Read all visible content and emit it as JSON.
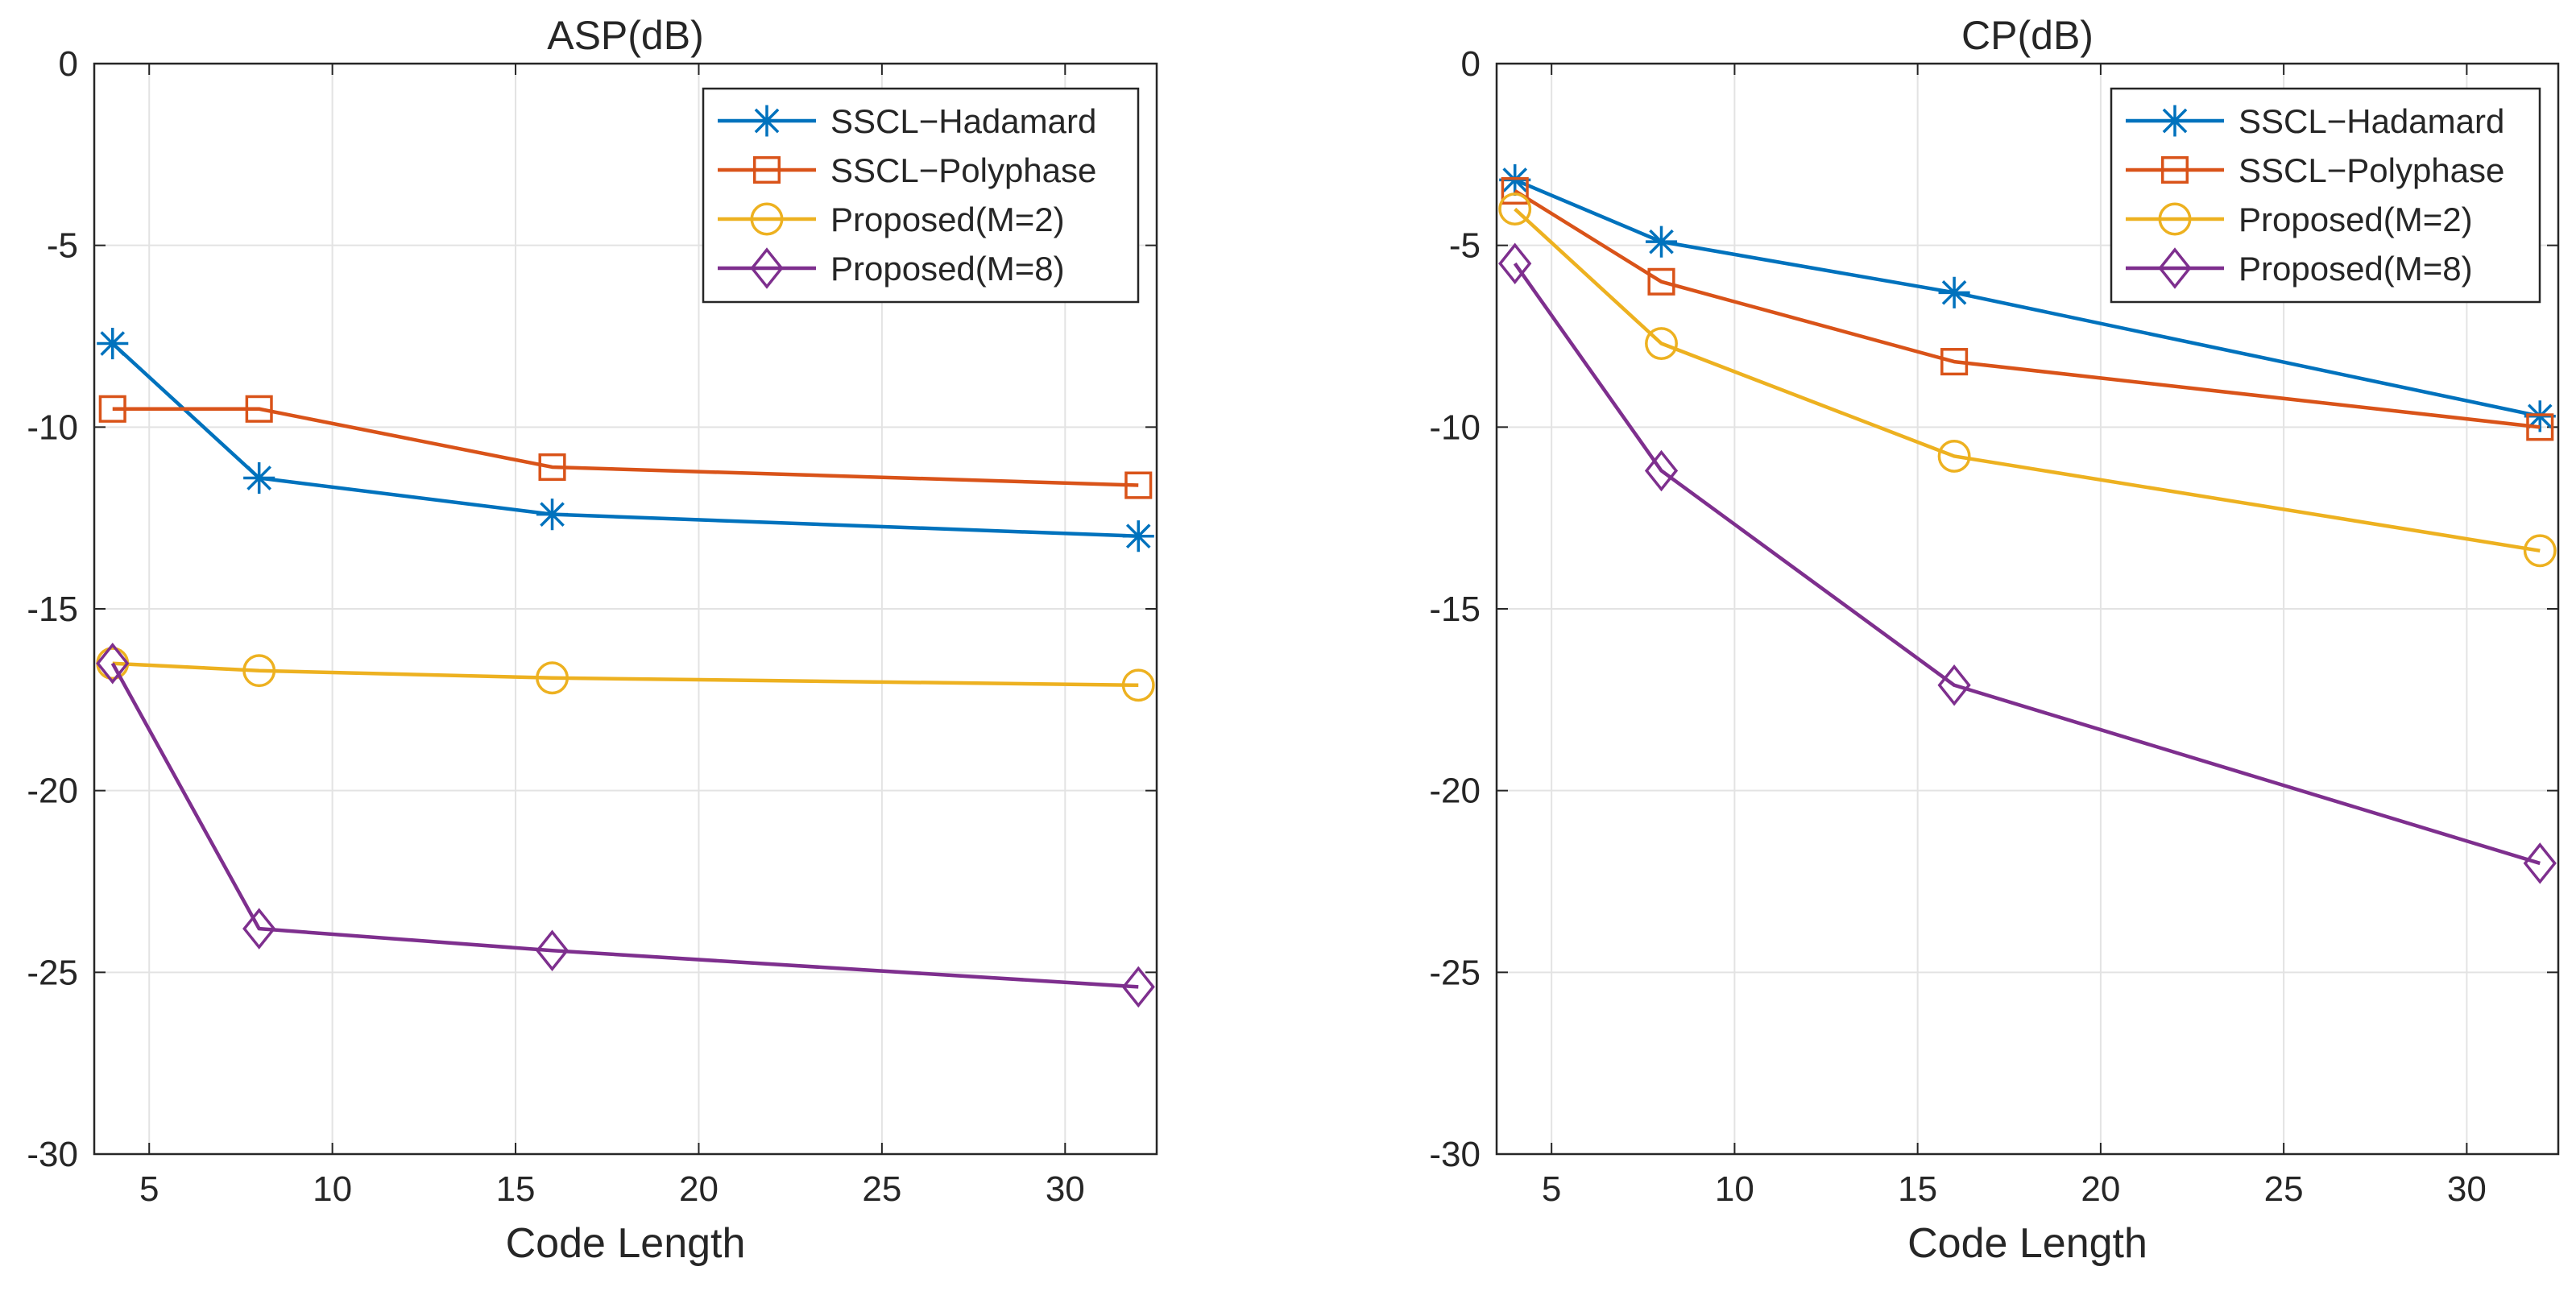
{
  "chart_data": [
    {
      "type": "line",
      "title": "ASP(dB)",
      "xlabel": "Code Length",
      "ylabel": "",
      "xlim": [
        3.5,
        32.5
      ],
      "ylim": [
        -30,
        0
      ],
      "xticks": [
        5,
        10,
        15,
        20,
        25,
        30
      ],
      "yticks": [
        0,
        -5,
        -10,
        -15,
        -20,
        -25,
        -30
      ],
      "grid": true,
      "legend_position": "top-right",
      "x": [
        4,
        8,
        16,
        32
      ],
      "series": [
        {
          "name": "SSCL−Hadamard",
          "values": [
            -7.7,
            -11.4,
            -12.4,
            -13.0
          ],
          "color": "#0072BD",
          "marker": "asterisk"
        },
        {
          "name": "SSCL−Polyphase",
          "values": [
            -9.5,
            -9.5,
            -11.1,
            -11.6
          ],
          "color": "#D95319",
          "marker": "square"
        },
        {
          "name": "Proposed(M=2)",
          "values": [
            -16.5,
            -16.7,
            -16.9,
            -17.1
          ],
          "color": "#EDB120",
          "marker": "circle"
        },
        {
          "name": "Proposed(M=8)",
          "values": [
            -16.5,
            -23.8,
            -24.4,
            -25.4
          ],
          "color": "#7E2F8E",
          "marker": "diamond"
        }
      ]
    },
    {
      "type": "line",
      "title": "CP(dB)",
      "xlabel": "Code Length",
      "ylabel": "",
      "xlim": [
        3.5,
        32.5
      ],
      "ylim": [
        -30,
        0
      ],
      "xticks": [
        5,
        10,
        15,
        20,
        25,
        30
      ],
      "yticks": [
        0,
        -5,
        -10,
        -15,
        -20,
        -25,
        -30
      ],
      "grid": true,
      "legend_position": "top-right",
      "x": [
        4,
        8,
        16,
        32
      ],
      "series": [
        {
          "name": "SSCL−Hadamard",
          "values": [
            -3.2,
            -4.9,
            -6.3,
            -9.7
          ],
          "color": "#0072BD",
          "marker": "asterisk"
        },
        {
          "name": "SSCL−Polyphase",
          "values": [
            -3.5,
            -6.0,
            -8.2,
            -10.0
          ],
          "color": "#D95319",
          "marker": "square"
        },
        {
          "name": "Proposed(M=2)",
          "values": [
            -4.0,
            -7.7,
            -10.8,
            -13.4
          ],
          "color": "#EDB120",
          "marker": "circle"
        },
        {
          "name": "Proposed(M=8)",
          "values": [
            -5.5,
            -11.2,
            -17.1,
            -22.0
          ],
          "color": "#7E2F8E",
          "marker": "diamond"
        }
      ]
    }
  ]
}
